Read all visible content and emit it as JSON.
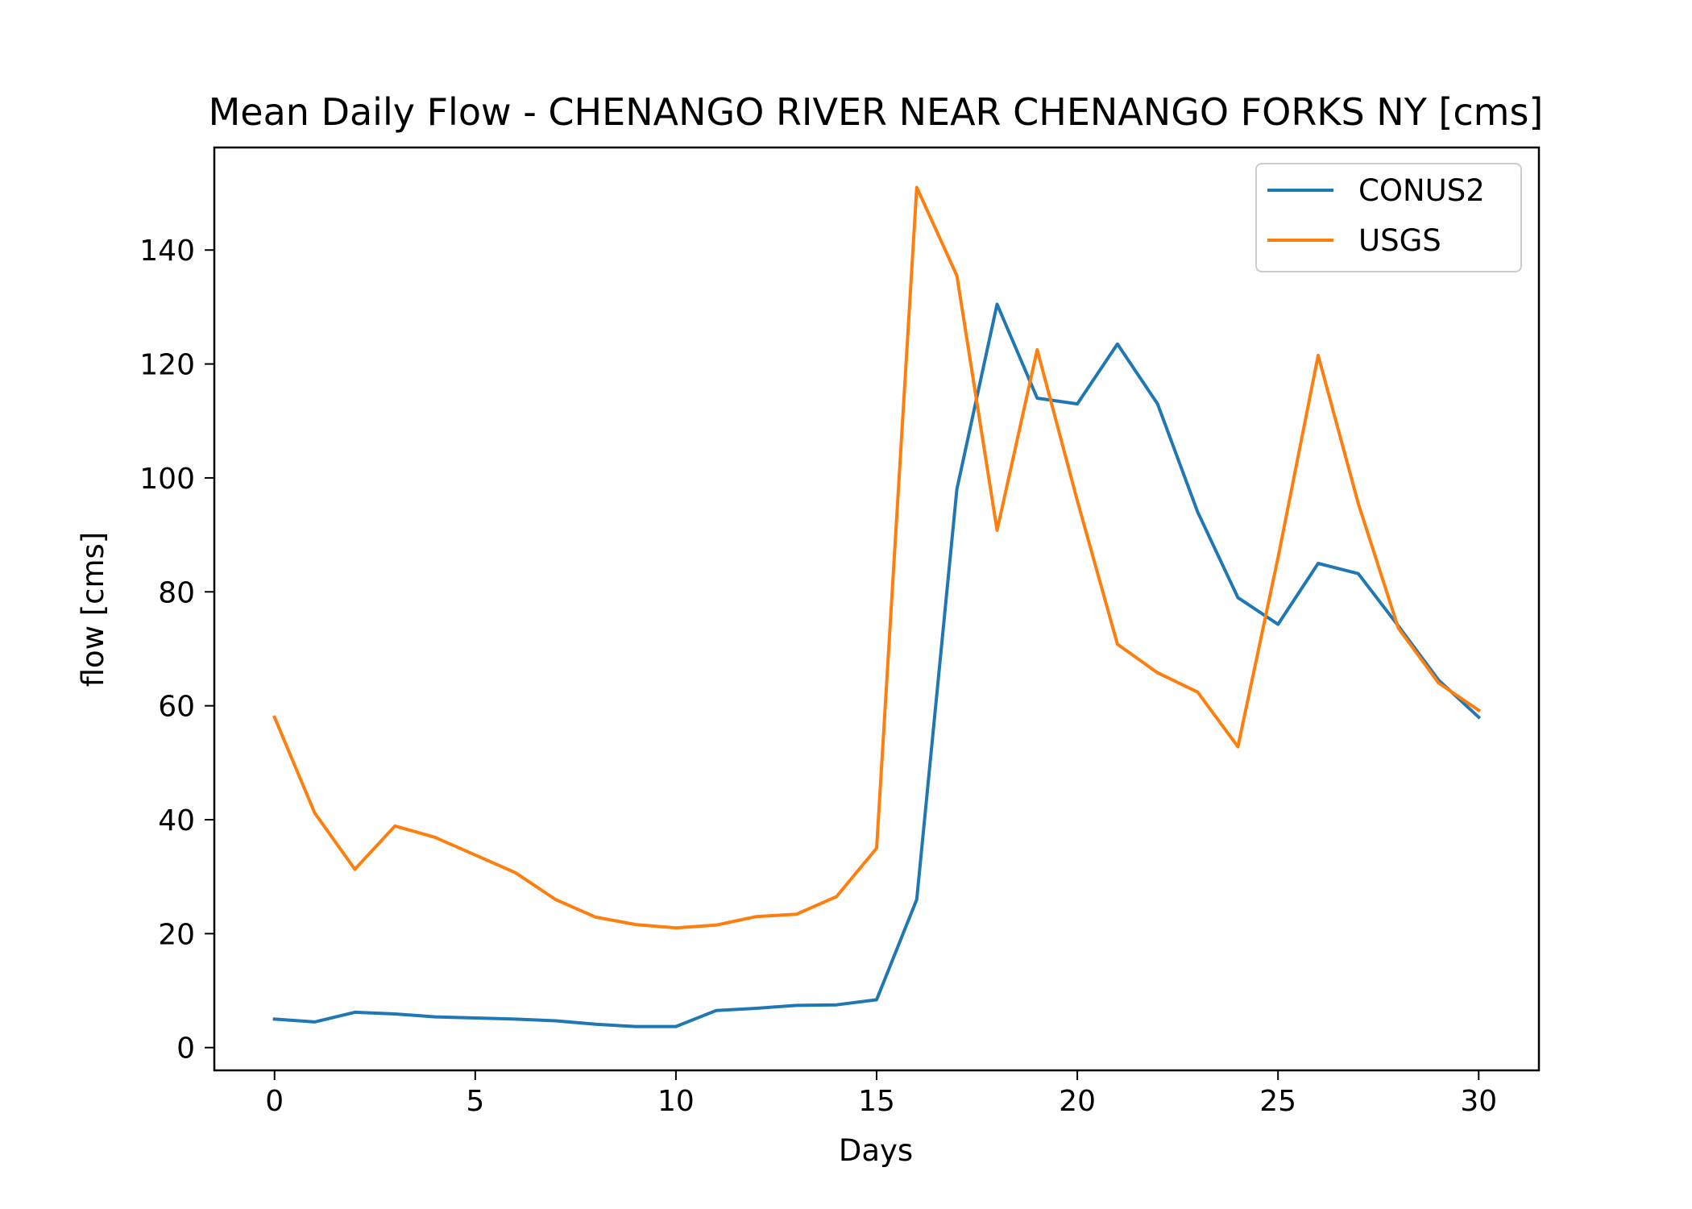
{
  "chart_data": {
    "type": "line",
    "title": "Mean Daily Flow - CHENANGO RIVER NEAR CHENANGO FORKS NY [cms]",
    "xlabel": "Days",
    "ylabel": "flow [cms]",
    "xlim": [
      -1.5,
      31.5
    ],
    "ylim": [
      -4,
      158
    ],
    "xticks": [
      0,
      5,
      10,
      15,
      20,
      25,
      30
    ],
    "yticks": [
      0,
      20,
      40,
      60,
      80,
      100,
      120,
      140
    ],
    "grid": false,
    "legend": {
      "placement": "top-right"
    },
    "x": [
      0,
      1,
      2,
      3,
      4,
      5,
      6,
      7,
      8,
      9,
      10,
      11,
      12,
      13,
      14,
      15,
      16,
      17,
      18,
      19,
      20,
      21,
      22,
      23,
      24,
      25,
      26,
      27,
      28,
      29,
      30
    ],
    "series": [
      {
        "name": "CONUS2",
        "color": "#1f77b4",
        "values": [
          5.0,
          4.5,
          6.2,
          5.9,
          5.4,
          5.2,
          5.0,
          4.7,
          4.1,
          3.7,
          3.7,
          6.5,
          6.9,
          7.4,
          7.5,
          8.4,
          26.0,
          98.0,
          130.5,
          114.0,
          113.0,
          123.5,
          113.0,
          94.0,
          79.0,
          74.3,
          85.0,
          83.2,
          74.0,
          64.5,
          58.0
        ]
      },
      {
        "name": "USGS",
        "color": "#ff7f0e",
        "values": [
          58.0,
          41.2,
          31.3,
          38.9,
          36.9,
          33.8,
          30.7,
          26.0,
          22.9,
          21.6,
          21.0,
          21.5,
          23.0,
          23.4,
          26.5,
          35.0,
          151.0,
          135.5,
          90.8,
          122.5,
          96.0,
          70.8,
          65.8,
          62.4,
          52.8,
          86.0,
          121.5,
          95.5,
          73.6,
          64.0,
          59.2
        ]
      }
    ]
  }
}
